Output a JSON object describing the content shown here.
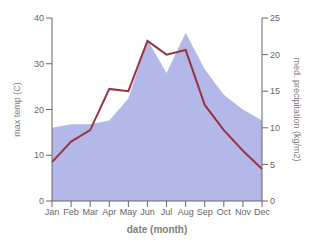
{
  "chart_data": {
    "type": "line",
    "xlabel": "date (month)",
    "ylabel": "max temp (C)",
    "y2label": "med. precipitation (kg/m2)",
    "categories": [
      "Jan",
      "Feb",
      "Mar",
      "Apr",
      "May",
      "Jun",
      "Jul",
      "Aug",
      "Sep",
      "Oct",
      "Nov",
      "Dec"
    ],
    "series": [
      {
        "type": "area",
        "color": "#b3b8e8",
        "axis": "y2",
        "values": [
          10.0,
          10.5,
          10.5,
          11.0,
          14.0,
          22.0,
          17.5,
          23.0,
          18.0,
          14.5,
          12.5,
          11.0
        ]
      },
      {
        "type": "line",
        "color": "#993344",
        "axis": "y",
        "values": [
          8.5,
          13.0,
          15.5,
          24.5,
          24.0,
          35.0,
          32.0,
          33.0,
          21.0,
          15.5,
          11.0,
          7.0
        ]
      }
    ],
    "ylim": [
      0,
      40
    ],
    "yticks": [
      0,
      10,
      20,
      30,
      40
    ],
    "y2lim": [
      0,
      25
    ],
    "y2ticks": [
      0,
      5,
      10,
      15,
      20,
      25
    ],
    "grid": false
  }
}
